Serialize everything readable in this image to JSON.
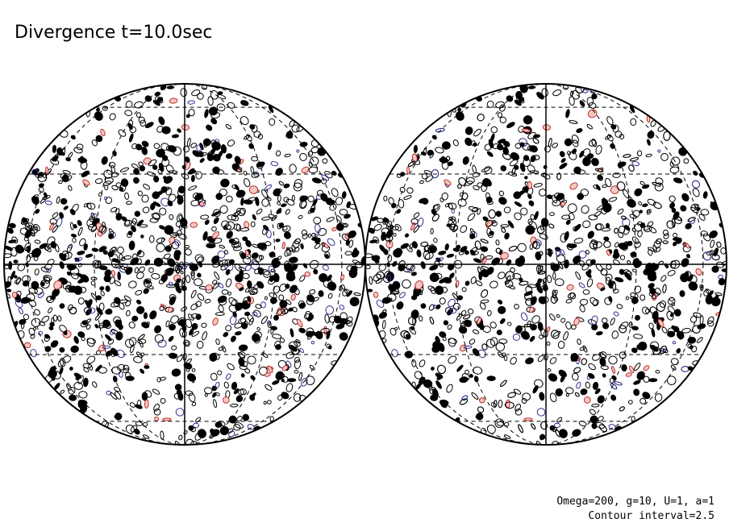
{
  "title": "Divergence t=10.0sec",
  "parameters": "Omega=200, g=10, U=1, a=1",
  "contour_interval": "Contour interval=2.5"
}
